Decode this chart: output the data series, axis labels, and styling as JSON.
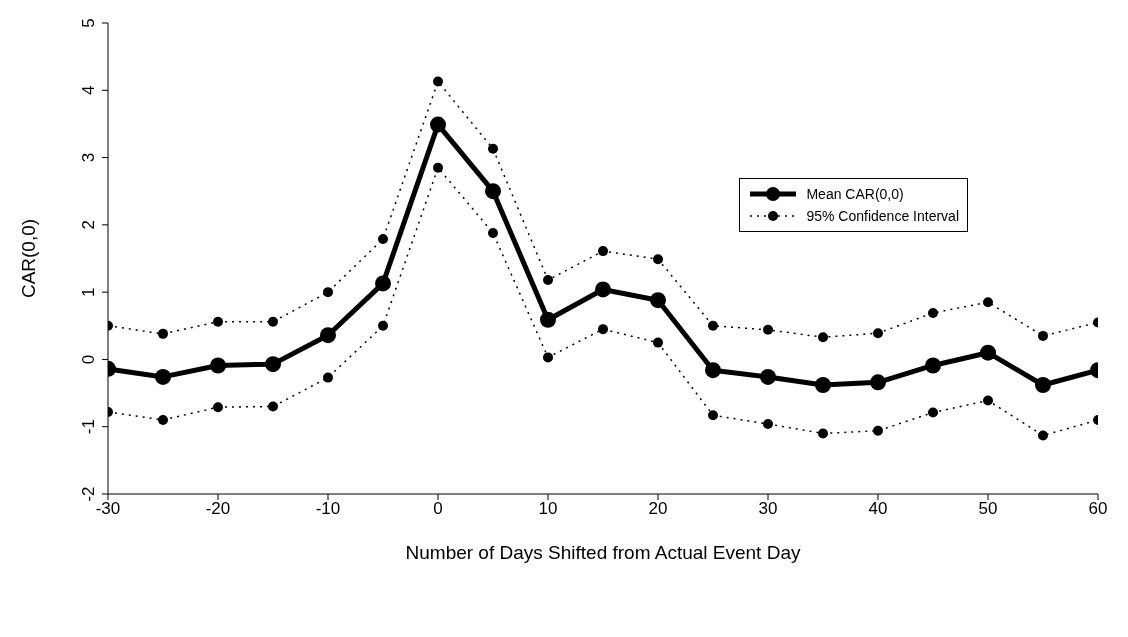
{
  "chart_data": {
    "type": "line",
    "xlabel": "Number of Days Shifted from Actual Event Day",
    "ylabel": "CAR(0,0)",
    "x": [
      -30,
      -25,
      -20,
      -15,
      -10,
      -5,
      0,
      5,
      10,
      15,
      20,
      25,
      30,
      35,
      40,
      45,
      50,
      55,
      60
    ],
    "series": [
      {
        "name": "Mean CAR(0,0)",
        "color": "#000000",
        "line_style": "solid",
        "marker": "circle",
        "values": [
          -0.14,
          -0.26,
          -0.09,
          -0.07,
          0.36,
          1.13,
          3.49,
          2.5,
          0.59,
          1.04,
          0.88,
          -0.16,
          -0.26,
          -0.38,
          -0.34,
          -0.09,
          0.1,
          -0.38,
          -0.16
        ]
      },
      {
        "name": "95% Confidence Interval",
        "color": "#000000",
        "line_style": "dotted",
        "marker": "circle",
        "values": [
          0.5,
          0.38,
          0.56,
          0.56,
          1.0,
          1.79,
          4.13,
          3.13,
          1.18,
          1.61,
          1.49,
          0.5,
          0.44,
          0.33,
          0.39,
          0.69,
          0.85,
          0.35,
          0.55
        ]
      },
      {
        "color": "#000000",
        "line_style": "dotted",
        "marker": "circle",
        "values": [
          -0.78,
          -0.9,
          -0.71,
          -0.7,
          -0.27,
          0.5,
          2.85,
          1.88,
          0.03,
          0.45,
          0.25,
          -0.83,
          -0.96,
          -1.1,
          -1.06,
          -0.79,
          -0.61,
          -1.13,
          -0.9
        ]
      }
    ],
    "xlim": [
      -30,
      60
    ],
    "xticks": [
      -30,
      -20,
      -10,
      0,
      10,
      20,
      30,
      40,
      50,
      60
    ],
    "ylim": [
      -2,
      5
    ],
    "yticks": [
      -2,
      -1,
      0,
      1,
      2,
      3,
      4,
      5
    ],
    "grid": false,
    "legend": "top right"
  }
}
